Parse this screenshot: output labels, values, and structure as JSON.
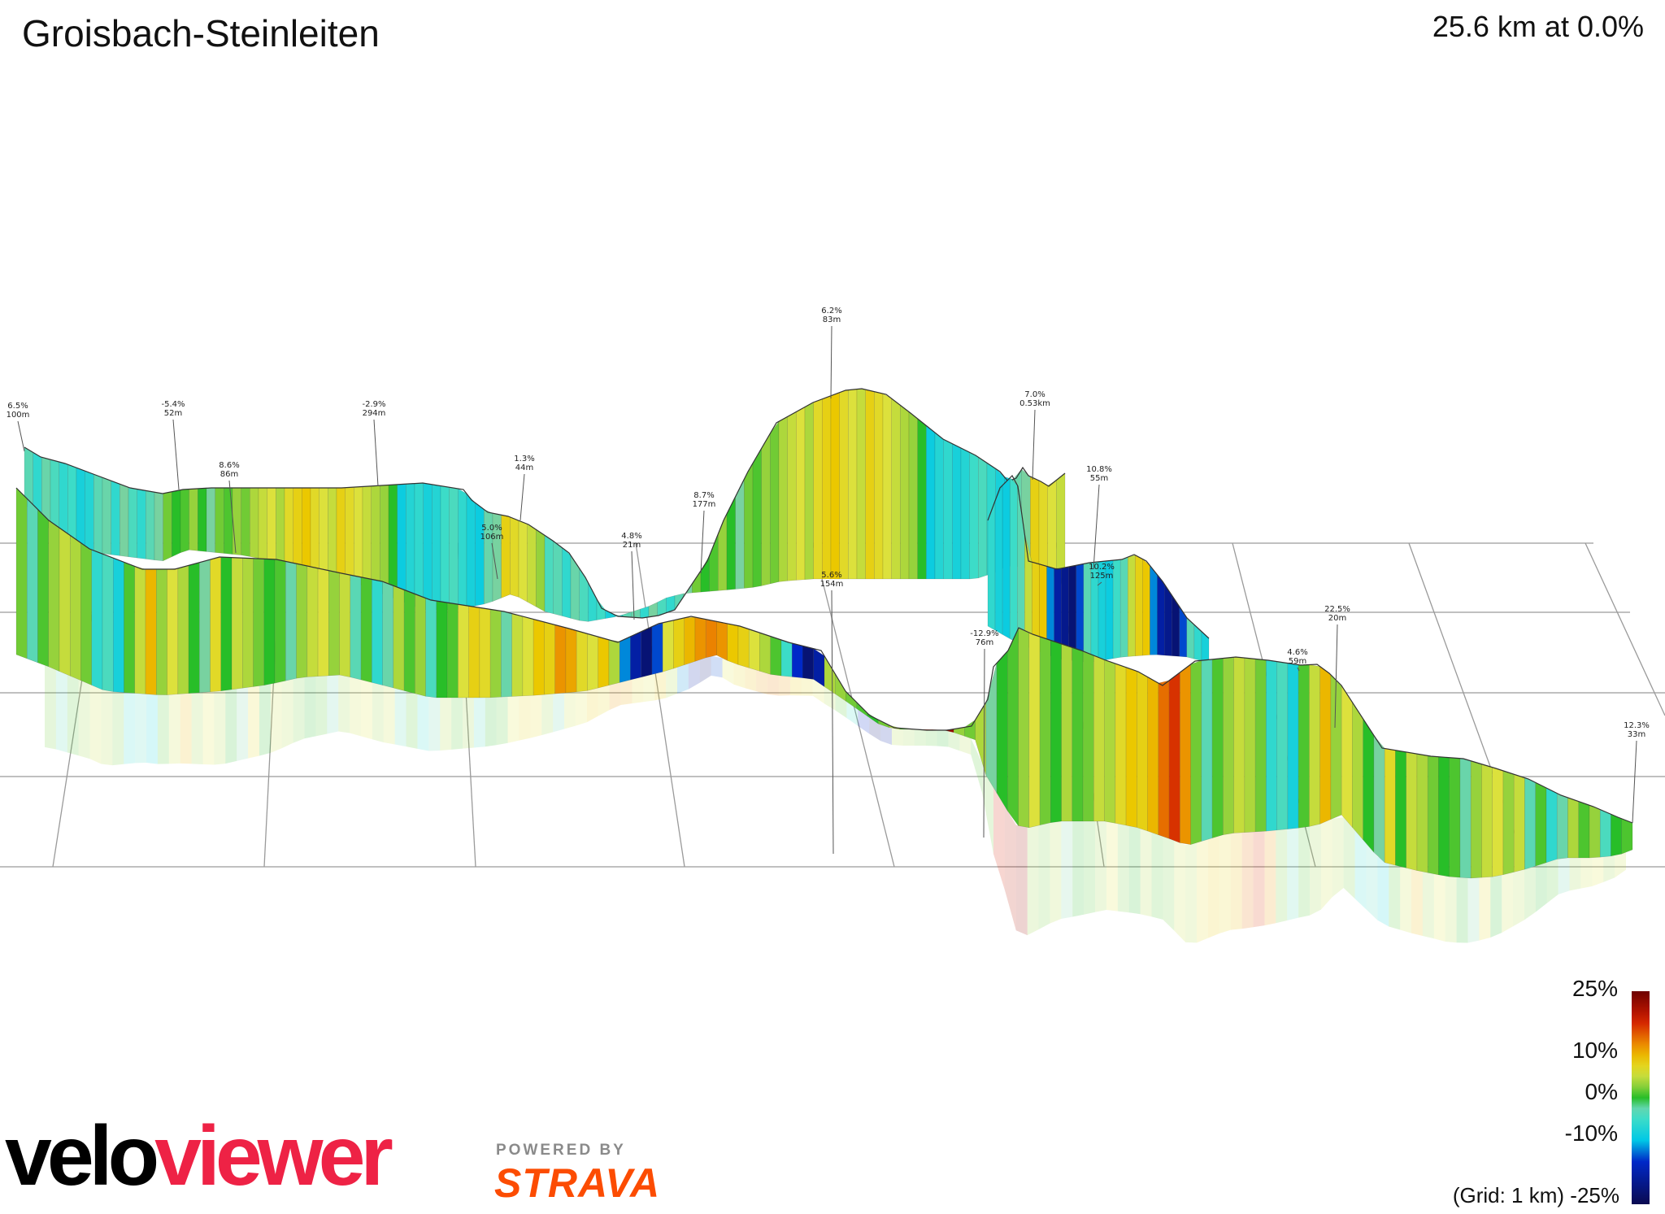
{
  "header": {
    "title": "Groisbach-Steinleiten",
    "summary": "25.6 km at 0.0%"
  },
  "legend": {
    "ticks": [
      "25%",
      "10%",
      "0%",
      "-10%",
      "-25%"
    ],
    "grid_note": "(Grid: 1 km)",
    "colors": [
      "#ffffff"
    ]
  },
  "branding": {
    "logo_velo": "velo",
    "logo_viewer": "viewer",
    "powered_by": "POWERED BY",
    "strava": "STRAVA",
    "colors": {
      "velo": "#000000",
      "viewer": "#ee2245",
      "strava": "#fc4c02"
    }
  },
  "chart_data": {
    "type": "area",
    "title": "Groisbach-Steinleiten",
    "summary": "25.6 km at 0.0%",
    "annotations": [
      {
        "gradient": "6.5%",
        "length": "100m"
      },
      {
        "gradient": "-5.4%",
        "length": "52m"
      },
      {
        "gradient": "8.6%",
        "length": "86m"
      },
      {
        "gradient": "-2.9%",
        "length": "294m"
      },
      {
        "gradient": "1.3%",
        "length": "44m"
      },
      {
        "gradient": "5.0%",
        "length": "106m"
      },
      {
        "gradient": "4.8%",
        "length": "21m"
      },
      {
        "gradient": "8.7%",
        "length": "177m"
      },
      {
        "gradient": "6.2%",
        "length": "83m"
      },
      {
        "gradient": "5.6%",
        "length": "154m"
      },
      {
        "gradient": "7.0%",
        "length": "0.53km"
      },
      {
        "gradient": "-12.9%",
        "length": "76m"
      },
      {
        "gradient": "10.8%",
        "length": "55m"
      },
      {
        "gradient": "10.2%",
        "length": "125m"
      },
      {
        "gradient": "22.5%",
        "length": "20m"
      },
      {
        "gradient": "4.6%",
        "length": "59m"
      },
      {
        "gradient": "12.3%",
        "length": "33m"
      }
    ],
    "legend_scale": [
      "25%",
      "10%",
      "0%",
      "-10%",
      "-25%"
    ],
    "grid": "1 km"
  }
}
